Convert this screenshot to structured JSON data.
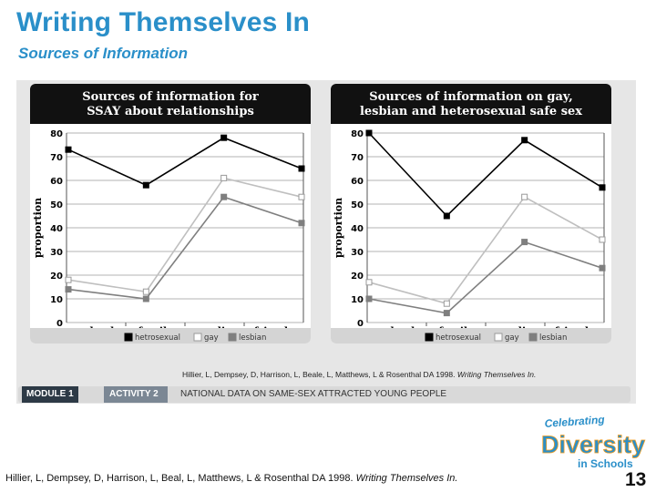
{
  "header": {
    "title": "Writing Themselves In",
    "subtitle": "Sources of Information"
  },
  "chart_data": [
    {
      "type": "line",
      "title": "Sources of information for SSAY about relationships",
      "title_lines": [
        "Sources of information for",
        "SSAY about relationships"
      ],
      "ylabel": "proportion",
      "xlabel": "",
      "ylim": [
        0,
        80
      ],
      "yticks": [
        0,
        10,
        20,
        30,
        40,
        50,
        60,
        70,
        80
      ],
      "grid": true,
      "legend_position": "bottom",
      "categories": [
        "school",
        "family",
        "media",
        "friends"
      ],
      "series": [
        {
          "name": "hetrosexual",
          "values": [
            73,
            58,
            78,
            65
          ],
          "color": "#000000"
        },
        {
          "name": "gay",
          "values": [
            18,
            13,
            61,
            53
          ],
          "color": "#bfbfbf"
        },
        {
          "name": "lesbian",
          "values": [
            14,
            10,
            53,
            42
          ],
          "color": "#7f7f7f"
        }
      ]
    },
    {
      "type": "line",
      "title": "Sources of information on gay, lesbian and heterosexual safe sex",
      "title_lines": [
        "Sources of information on gay,",
        "lesbian and heterosexual safe sex"
      ],
      "ylabel": "proportion",
      "xlabel": "",
      "ylim": [
        0,
        80
      ],
      "yticks": [
        0,
        10,
        20,
        30,
        40,
        50,
        60,
        70,
        80
      ],
      "grid": true,
      "legend_position": "bottom",
      "categories": [
        "school",
        "family",
        "media",
        "friends"
      ],
      "series": [
        {
          "name": "hetrosexual",
          "values": [
            80,
            45,
            77,
            57
          ],
          "color": "#000000"
        },
        {
          "name": "gay",
          "values": [
            17,
            8,
            53,
            35
          ],
          "color": "#bfbfbf"
        },
        {
          "name": "lesbian",
          "values": [
            10,
            4,
            34,
            23
          ],
          "color": "#7f7f7f"
        }
      ]
    }
  ],
  "figure_credit": {
    "text": "Hillier, L, Dempsey, D, Harrison, L, Beale, L, Matthews, L & Rosenthal DA 1998.",
    "italic": "Writing Themselves In."
  },
  "module_bar": {
    "module": "MODULE 1",
    "activity": "ACTIVITY 2",
    "topic": "NATIONAL DATA ON SAME-SEX ATTRACTED YOUNG PEOPLE"
  },
  "footer": {
    "citation": "Hillier, L, Dempsey, D, Harrison, L, Beal, L, Matthews, L & Rosenthal DA 1998.",
    "citation_italic": "Writing Themselves In.",
    "page_number": "13"
  },
  "logo": {
    "line1": "Celebrating",
    "line2": "Diversity",
    "line3": "in Schools"
  },
  "colors": {
    "title": "#2a8fc9",
    "chart_header": "#111111",
    "legend_band": "#d4d4d4",
    "logo_blue": "#2a8fc9",
    "logo_orange": "#f39c1f"
  }
}
